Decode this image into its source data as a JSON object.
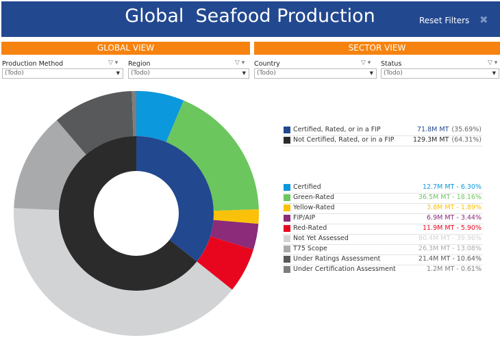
{
  "header": {
    "title": "Global  Seafood Production",
    "reset_label": "Reset Filters",
    "close_icon": "✖"
  },
  "sections": {
    "global_view": "GLOBAL VIEW",
    "sector_view": "SECTOR VIEW"
  },
  "filters": [
    {
      "label": "Production Method",
      "value": "(Todo)"
    },
    {
      "label": "Region",
      "value": "(Todo)"
    },
    {
      "label": "Country",
      "value": "(Todo)"
    },
    {
      "label": "Status",
      "value": "(Todo)"
    }
  ],
  "icons": {
    "filter": "filter-icon",
    "dropdown": "chevron-down-icon"
  },
  "legend_top": [
    {
      "name": "Certified, Rated, or in a FIP",
      "value": "71.8M MT",
      "pct": "(35.69%)",
      "color": "#22488f",
      "value_color": "#22488f"
    },
    {
      "name": "Not Certified, Rated, or in a FIP",
      "value": "129.3M MT",
      "pct": "(64.31%)",
      "color": "#2b2b2b",
      "value_color": "#2b2b2b"
    }
  ],
  "legend_bottom": [
    {
      "name": "Certified",
      "value": "12.7M MT",
      "pct": "6.30%",
      "color": "#0b98dc"
    },
    {
      "name": "Green-Rated",
      "value": "36.5M MT",
      "pct": "18.16%",
      "color": "#6cc65e"
    },
    {
      "name": "Yellow-Rated",
      "value": "3.8M MT",
      "pct": "1.89%",
      "color": "#fac10a"
    },
    {
      "name": "FIP/AIP",
      "value": "6.9M MT",
      "pct": "3.44%",
      "color": "#8b2b79"
    },
    {
      "name": "Red-Rated",
      "value": "11.9M MT",
      "pct": "5.90%",
      "color": "#e8061f"
    },
    {
      "name": "Not Yet Assessed",
      "value": "80.4M MT",
      "pct": "39.96%",
      "color": "#d1d3d4"
    },
    {
      "name": "T75 Scope",
      "value": "26.3M MT",
      "pct": "13.08%",
      "color": "#a9aaac"
    },
    {
      "name": "Under Ratings Assessment",
      "value": "21.4M MT",
      "pct": "10.64%",
      "color": "#58595b"
    },
    {
      "name": "Under Certification Assessment",
      "value": "1.2M MT",
      "pct": "0.61%",
      "color": "#7d7e80"
    }
  ],
  "chart_data": {
    "type": "pie",
    "inner_ring": {
      "labels": [
        "Certified, Rated, or in a FIP",
        "Not Certified, Rated, or in a FIP"
      ],
      "values": [
        71.8,
        129.3
      ],
      "percent": [
        35.69,
        64.31
      ],
      "colors": [
        "#22488f",
        "#2b2b2b"
      ]
    },
    "outer_ring": {
      "labels": [
        "Certified",
        "Green-Rated",
        "Yellow-Rated",
        "FIP/AIP",
        "Red-Rated",
        "Not Yet Assessed",
        "T75 Scope",
        "Under Ratings Assessment",
        "Under Certification Assessment"
      ],
      "values": [
        12.7,
        36.5,
        3.8,
        6.9,
        11.9,
        80.4,
        26.3,
        21.4,
        1.2
      ],
      "percent": [
        6.3,
        18.16,
        1.89,
        3.44,
        5.9,
        39.96,
        13.08,
        10.64,
        0.61
      ],
      "colors": [
        "#0b98dc",
        "#6cc65e",
        "#fac10a",
        "#8b2b79",
        "#e8061f",
        "#d1d3d4",
        "#a9aaac",
        "#58595b",
        "#7d7e80"
      ]
    },
    "unit": "M MT"
  }
}
